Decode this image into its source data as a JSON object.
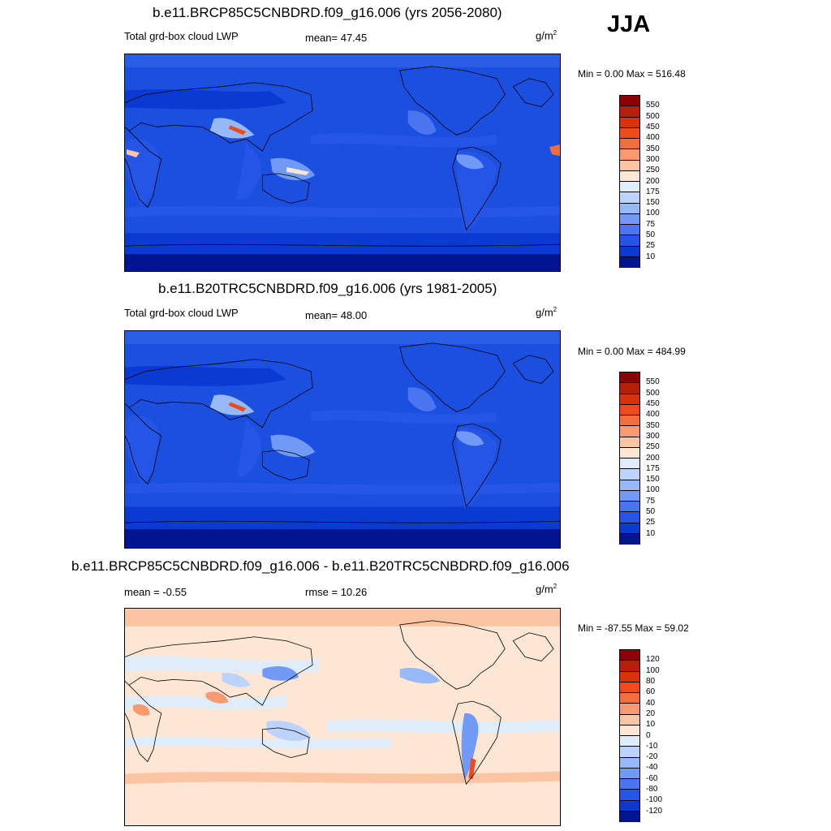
{
  "season": "JJA",
  "panels": [
    {
      "title": "b.e11.BRCP85C5CNBDRD.f09_g16.006 (yrs 2056-2080)",
      "left_label": "Total grd-box cloud LWP",
      "center_label": "mean=  47.45",
      "units": "g/m",
      "units_sup": "2",
      "minmax": "Min =   0.00 Max = 516.48"
    },
    {
      "title": "b.e11.B20TRC5CNBDRD.f09_g16.006 (yrs 1981-2005)",
      "left_label": "Total grd-box cloud LWP",
      "center_label": "mean=  48.00",
      "units": "g/m",
      "units_sup": "2",
      "minmax": "Min =   0.00 Max = 484.99"
    },
    {
      "title": "b.e11.BRCP85C5CNBDRD.f09_g16.006 - b.e11.B20TRC5CNBDRD.f09_g16.006",
      "left_label": "mean =  -0.55",
      "center_label": "rmse =  10.26",
      "units": "g/m",
      "units_sup": "2",
      "minmax": "Min = -87.55 Max =  59.02"
    }
  ],
  "colorbar_lwp": {
    "labels": [
      "550",
      "500",
      "450",
      "400",
      "350",
      "300",
      "250",
      "200",
      "175",
      "150",
      "100",
      "75",
      "50",
      "25",
      "10"
    ],
    "colors": [
      "#8b0000",
      "#b5200a",
      "#d8320c",
      "#ef4a1c",
      "#f36d3d",
      "#f79a6f",
      "#fbc4a3",
      "#fde6d4",
      "#dfecfa",
      "#bcd4fb",
      "#96b9fa",
      "#709af6",
      "#4a75f0",
      "#2455e6",
      "#0a3ad2",
      "#00158f"
    ]
  },
  "colorbar_diff": {
    "labels": [
      "120",
      "100",
      "80",
      "60",
      "40",
      "20",
      "10",
      "0",
      "-10",
      "-20",
      "-40",
      "-60",
      "-80",
      "-100",
      "-120"
    ],
    "colors": [
      "#8b0000",
      "#b5200a",
      "#d8320c",
      "#ef4a1c",
      "#f36d3d",
      "#f79a6f",
      "#fbc4a3",
      "#fde6d4",
      "#dfecfa",
      "#bcd4fb",
      "#96b9fa",
      "#709af6",
      "#4a75f0",
      "#2455e6",
      "#0a3ad2",
      "#00158f"
    ]
  }
}
